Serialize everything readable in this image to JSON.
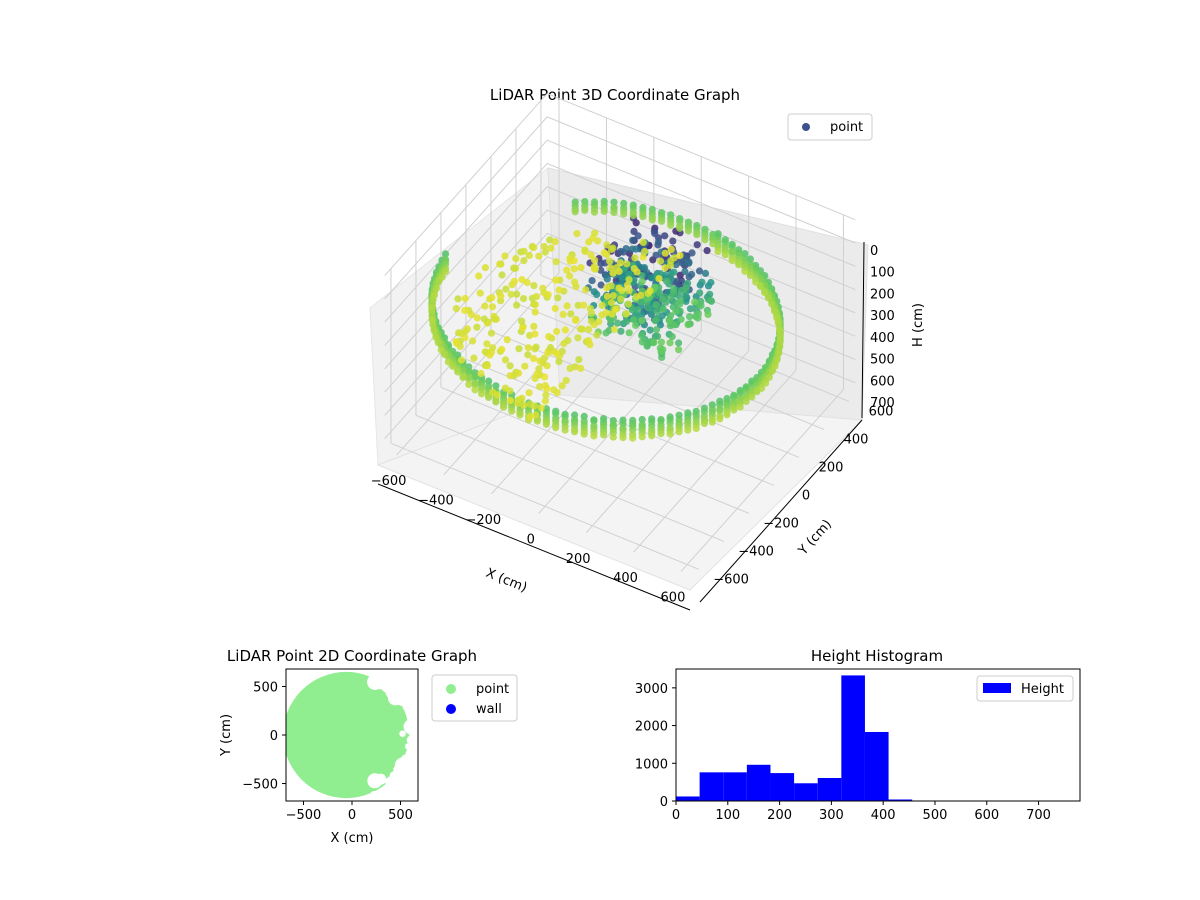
{
  "chart_data": [
    {
      "type": "scatter3d",
      "title": "LiDAR Point 3D Coordinate Graph",
      "xlabel": "X (cm)",
      "ylabel": "Y (cm)",
      "zlabel": "H (cm)",
      "xticks": [
        -600,
        -400,
        -200,
        0,
        200,
        400,
        600
      ],
      "yticks": [
        -600,
        -400,
        -200,
        0,
        200,
        400,
        600
      ],
      "zticks": [
        0,
        100,
        200,
        300,
        400,
        500,
        600,
        700
      ],
      "xlim": [
        -650,
        650
      ],
      "ylim": [
        -650,
        650
      ],
      "zlim": [
        0,
        750
      ],
      "zaxis_inverted": true,
      "colormap": "viridis",
      "legend": {
        "location": "upper-right",
        "entries": [
          {
            "label": "point",
            "color": "#3b528b"
          }
        ]
      },
      "description_of_points": "dense cylindrical wall of radius ~650 cm at heights ~320-400 cm plus scattered interior obstacle points",
      "series": [
        {
          "name": "point",
          "kind": "ring",
          "radius": 650,
          "h_range": [
            320,
            400
          ],
          "theta_range": [
            -175,
            80
          ]
        },
        {
          "name": "point",
          "kind": "ring",
          "radius": 650,
          "h_range": [
            330,
            380
          ],
          "theta_range": [
            80,
            130
          ]
        },
        {
          "name": "point",
          "kind": "cluster",
          "x_range": [
            -100,
            250
          ],
          "y_range": [
            -100,
            300
          ],
          "h_range": [
            50,
            350
          ]
        }
      ]
    },
    {
      "type": "scatter",
      "title": "LiDAR Point 2D Coordinate Graph",
      "xlabel": "X (cm)",
      "ylabel": "Y (cm)",
      "xticks": [
        -500,
        0,
        500
      ],
      "yticks": [
        -500,
        0,
        500
      ],
      "xlim": [
        -680,
        680
      ],
      "ylim": [
        -680,
        680
      ],
      "legend": {
        "location": "outside-right",
        "entries": [
          {
            "label": "point",
            "color": "#90ee90"
          },
          {
            "label": "wall",
            "color": "#0000ff"
          }
        ]
      },
      "series": [
        {
          "name": "point",
          "color": "#90ee90",
          "kind": "disk",
          "radius": 650
        },
        {
          "name": "wall",
          "color": "#0000ff",
          "points": []
        }
      ]
    },
    {
      "type": "bar",
      "title": "Height Histogram",
      "xlim": [
        0,
        780
      ],
      "ylim": [
        0,
        3500
      ],
      "xticks": [
        0,
        100,
        200,
        300,
        400,
        500,
        600,
        700
      ],
      "yticks": [
        0,
        1000,
        2000,
        3000
      ],
      "bin_width": 45.6,
      "bins_start": [
        0,
        45.6,
        91.2,
        136.8,
        182.4,
        228.0,
        273.6,
        319.2,
        364.8,
        410.4,
        456.0,
        501.6,
        547.2,
        592.8,
        638.4,
        684.0,
        729.6
      ],
      "values": [
        120,
        760,
        760,
        960,
        740,
        470,
        610,
        3330,
        1830,
        40,
        5,
        3,
        2,
        2,
        1,
        1,
        1
      ],
      "color": "#0000ff",
      "legend": {
        "location": "upper-right",
        "entries": [
          {
            "label": "Height",
            "color": "#0000ff"
          }
        ]
      }
    }
  ]
}
